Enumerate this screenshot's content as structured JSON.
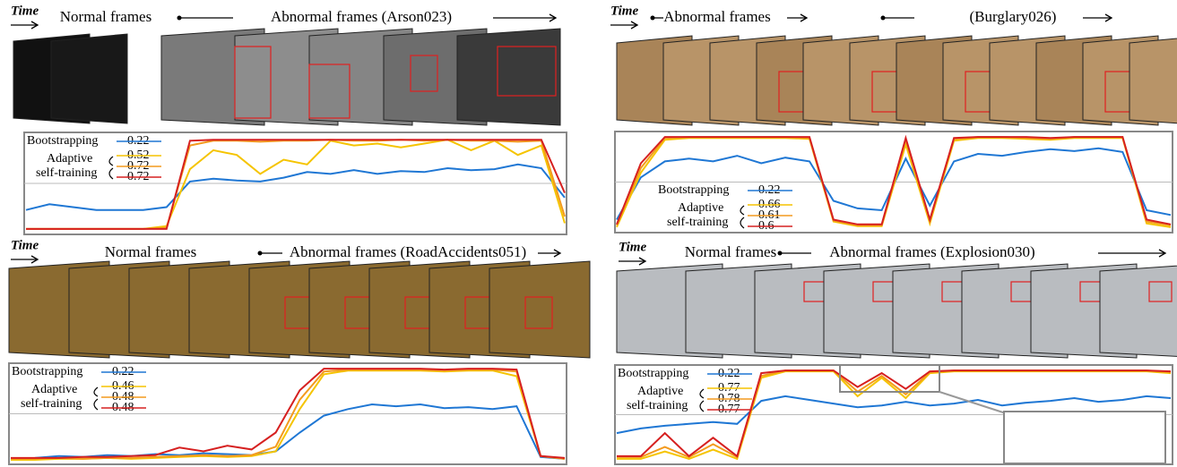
{
  "chart_data": [
    {
      "type": "line",
      "time_label": "Time",
      "captions": [
        "Normal frames",
        "Abnormal frames (Arson023)"
      ],
      "group_label": [
        "Adaptive",
        "self-training"
      ],
      "legend": "upper left",
      "ylim": [
        0,
        1
      ],
      "threshold": 0.5,
      "series": [
        {
          "name": "Bootstrapping",
          "color": "#1f77d4",
          "score": 0.22,
          "values": [
            0.22,
            0.28,
            0.25,
            0.22,
            0.22,
            0.22,
            0.25,
            0.52,
            0.55,
            0.53,
            0.52,
            0.56,
            0.62,
            0.6,
            0.64,
            0.6,
            0.63,
            0.62,
            0.66,
            0.64,
            0.65,
            0.7,
            0.66,
            0.35
          ]
        },
        {
          "color": "#f5c400",
          "score": 0.52,
          "values": [
            0.02,
            0.02,
            0.02,
            0.02,
            0.02,
            0.02,
            0.05,
            0.65,
            0.85,
            0.8,
            0.6,
            0.75,
            0.7,
            0.95,
            0.9,
            0.92,
            0.88,
            0.92,
            0.96,
            0.85,
            0.95,
            0.8,
            0.9,
            0.08
          ]
        },
        {
          "color": "#f39a1e",
          "score": 0.72,
          "values": [
            0.02,
            0.02,
            0.02,
            0.02,
            0.02,
            0.02,
            0.03,
            0.9,
            0.95,
            0.95,
            0.94,
            0.95,
            0.95,
            0.96,
            0.95,
            0.95,
            0.96,
            0.95,
            0.96,
            0.95,
            0.95,
            0.94,
            0.95,
            0.15
          ]
        },
        {
          "color": "#d62020",
          "score": 0.72,
          "values": [
            0.02,
            0.02,
            0.02,
            0.02,
            0.02,
            0.02,
            0.02,
            0.95,
            0.96,
            0.96,
            0.96,
            0.96,
            0.96,
            0.96,
            0.96,
            0.96,
            0.96,
            0.96,
            0.96,
            0.96,
            0.96,
            0.96,
            0.96,
            0.4
          ]
        }
      ]
    },
    {
      "type": "line",
      "time_label": "Time",
      "captions": [
        "Abnormal frames",
        "(Burglary026)"
      ],
      "group_label": [
        "Adaptive",
        "self-training"
      ],
      "legend": "lower center",
      "ylim": [
        0,
        1
      ],
      "threshold": 0.5,
      "series": [
        {
          "name": "Bootstrapping",
          "color": "#1f77d4",
          "score": 0.22,
          "values": [
            0.1,
            0.55,
            0.72,
            0.75,
            0.72,
            0.78,
            0.7,
            0.76,
            0.72,
            0.3,
            0.22,
            0.2,
            0.75,
            0.25,
            0.72,
            0.8,
            0.78,
            0.82,
            0.85,
            0.83,
            0.86,
            0.82,
            0.2,
            0.15
          ]
        },
        {
          "color": "#f5c400",
          "score": 0.66,
          "values": [
            0.02,
            0.6,
            0.95,
            0.97,
            0.97,
            0.97,
            0.97,
            0.97,
            0.96,
            0.08,
            0.03,
            0.03,
            0.9,
            0.06,
            0.94,
            0.97,
            0.97,
            0.96,
            0.95,
            0.97,
            0.97,
            0.97,
            0.06,
            0.02
          ]
        },
        {
          "color": "#f39a1e",
          "score": 0.61,
          "values": [
            0.04,
            0.65,
            0.97,
            0.98,
            0.98,
            0.98,
            0.98,
            0.98,
            0.97,
            0.09,
            0.04,
            0.04,
            0.95,
            0.08,
            0.96,
            0.98,
            0.98,
            0.97,
            0.96,
            0.98,
            0.98,
            0.98,
            0.08,
            0.04
          ]
        },
        {
          "color": "#d62020",
          "score": 0.6,
          "values": [
            0.05,
            0.7,
            0.98,
            0.98,
            0.98,
            0.98,
            0.98,
            0.98,
            0.98,
            0.1,
            0.05,
            0.05,
            0.97,
            0.1,
            0.97,
            0.98,
            0.98,
            0.98,
            0.97,
            0.98,
            0.98,
            0.98,
            0.1,
            0.05
          ]
        }
      ]
    },
    {
      "type": "line",
      "time_label": "Time",
      "captions": [
        "Normal frames",
        "Abnormal frames (RoadAccidents051)"
      ],
      "group_label": [
        "Adaptive",
        "self-training"
      ],
      "legend": "upper left",
      "ylim": [
        0,
        1
      ],
      "threshold": 0.5,
      "series": [
        {
          "name": "Bootstrapping",
          "color": "#1f77d4",
          "score": 0.22,
          "values": [
            0.02,
            0.03,
            0.05,
            0.04,
            0.06,
            0.05,
            0.07,
            0.06,
            0.08,
            0.07,
            0.06,
            0.1,
            0.3,
            0.48,
            0.55,
            0.6,
            0.58,
            0.6,
            0.56,
            0.57,
            0.55,
            0.58,
            0.04,
            0.02
          ]
        },
        {
          "color": "#f5c400",
          "score": 0.46,
          "values": [
            0.01,
            0.01,
            0.02,
            0.02,
            0.03,
            0.02,
            0.03,
            0.04,
            0.05,
            0.04,
            0.05,
            0.1,
            0.55,
            0.92,
            0.96,
            0.96,
            0.96,
            0.96,
            0.95,
            0.96,
            0.96,
            0.9,
            0.05,
            0.02
          ]
        },
        {
          "color": "#f39a1e",
          "score": 0.48,
          "values": [
            0.02,
            0.02,
            0.03,
            0.02,
            0.03,
            0.03,
            0.04,
            0.05,
            0.06,
            0.05,
            0.06,
            0.15,
            0.65,
            0.95,
            0.97,
            0.97,
            0.97,
            0.97,
            0.96,
            0.97,
            0.97,
            0.95,
            0.05,
            0.02
          ]
        },
        {
          "color": "#d62020",
          "score": 0.48,
          "values": [
            0.03,
            0.03,
            0.03,
            0.04,
            0.04,
            0.05,
            0.06,
            0.14,
            0.1,
            0.16,
            0.12,
            0.3,
            0.75,
            0.98,
            0.98,
            0.98,
            0.98,
            0.98,
            0.97,
            0.98,
            0.98,
            0.97,
            0.05,
            0.03
          ]
        }
      ]
    },
    {
      "type": "line",
      "time_label": "Time",
      "captions": [
        "Normal frames",
        "Abnormal frames (Explosion030)"
      ],
      "group_label": [
        "Adaptive",
        "self-training"
      ],
      "legend": "upper left",
      "ylim": [
        0,
        1
      ],
      "threshold": 0.5,
      "series": [
        {
          "name": "Bootstrapping",
          "color": "#1f77d4",
          "score": 0.22,
          "values": [
            0.3,
            0.35,
            0.38,
            0.4,
            0.42,
            0.4,
            0.65,
            0.7,
            0.66,
            0.62,
            0.58,
            0.6,
            0.64,
            0.6,
            0.62,
            0.66,
            0.6,
            0.63,
            0.65,
            0.68,
            0.64,
            0.66,
            0.7,
            0.68
          ]
        },
        {
          "color": "#f5c400",
          "score": 0.77,
          "values": [
            0.02,
            0.02,
            0.1,
            0.02,
            0.12,
            0.02,
            0.9,
            0.97,
            0.97,
            0.97,
            0.7,
            0.9,
            0.68,
            0.95,
            0.97,
            0.97,
            0.97,
            0.97,
            0.97,
            0.97,
            0.97,
            0.97,
            0.97,
            0.95
          ]
        },
        {
          "color": "#f39a1e",
          "score": 0.78,
          "values": [
            0.04,
            0.04,
            0.15,
            0.04,
            0.18,
            0.04,
            0.92,
            0.98,
            0.98,
            0.98,
            0.75,
            0.92,
            0.72,
            0.96,
            0.98,
            0.98,
            0.98,
            0.98,
            0.98,
            0.98,
            0.98,
            0.98,
            0.98,
            0.96
          ]
        },
        {
          "color": "#d62020",
          "score": 0.77,
          "values": [
            0.05,
            0.05,
            0.3,
            0.05,
            0.25,
            0.05,
            0.95,
            0.98,
            0.98,
            0.98,
            0.8,
            0.95,
            0.78,
            0.97,
            0.98,
            0.98,
            0.98,
            0.98,
            0.98,
            0.98,
            0.98,
            0.98,
            0.98,
            0.97
          ]
        }
      ]
    }
  ]
}
